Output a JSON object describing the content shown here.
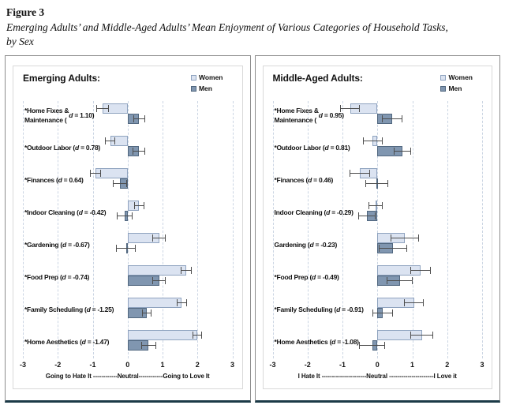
{
  "figure": {
    "label": "Figure 3",
    "title_line1": "Emerging Adults’ and Middle-Aged Adults’ Mean Enjoyment of Various Categories of Household Tasks,",
    "title_line2": "by Sex"
  },
  "legend": {
    "women": "Women",
    "men": "Men"
  },
  "colors": {
    "women_fill": "#dbe3f1",
    "women_border": "#8fa3bf",
    "men_fill": "#8096b0",
    "men_border": "#51677f",
    "error_bar": "#4d4d4d",
    "gridline": "#cbd5e3",
    "panel_bottom_border": "#1b3a47"
  },
  "chart_data": [
    {
      "type": "bar",
      "orientation": "horizontal",
      "id": "emerging-adults",
      "panel_title": "Emerging Adults:",
      "xlim": [
        -3,
        3
      ],
      "xticks": [
        -3,
        -2,
        -1,
        0,
        1,
        2,
        3
      ],
      "grid": "dashed-vertical",
      "legend_position": "top-right",
      "axis_caption": "Going to Hate It ------------Neutral------------Going to Love It",
      "series_names": [
        "Women",
        "Men"
      ],
      "categories": [
        {
          "label": "*Home Fixes &\nMaintenance (d = 1.10)",
          "d": "1.10",
          "women": -0.72,
          "women_err": 0.18,
          "men": 0.33,
          "men_err": 0.17
        },
        {
          "label": "*Outdoor Labor (d = 0.78)",
          "d": "0.78",
          "women": -0.5,
          "women_err": 0.14,
          "men": 0.33,
          "men_err": 0.18
        },
        {
          "label": "*Finances (d = 0.64)",
          "d": "0.64",
          "women": -0.92,
          "women_err": 0.16,
          "men": -0.22,
          "men_err": 0.2
        },
        {
          "label": "*Indoor Cleaning (d = -0.42)",
          "d": "-0.42",
          "women": 0.33,
          "women_err": 0.15,
          "men": -0.08,
          "men_err": 0.22
        },
        {
          "label": "*Gardening (d = -0.67)",
          "d": "-0.67",
          "women": 0.9,
          "women_err": 0.2,
          "men": -0.05,
          "men_err": 0.28
        },
        {
          "label": "*Food Prep (d = -0.74)",
          "d": "-0.74",
          "women": 1.68,
          "women_err": 0.16,
          "men": 0.9,
          "men_err": 0.19
        },
        {
          "label": "*Family Scheduling (d = -1.25)",
          "d": "-1.25",
          "women": 1.55,
          "women_err": 0.14,
          "men": 0.55,
          "men_err": 0.14
        },
        {
          "label": "*Home Aesthetics (d = -1.47)",
          "d": "-1.47",
          "women": 2.0,
          "women_err": 0.13,
          "men": 0.6,
          "men_err": 0.22
        }
      ]
    },
    {
      "type": "bar",
      "orientation": "horizontal",
      "id": "middle-aged-adults",
      "panel_title": "Middle-Aged Adults:",
      "xlim": [
        -3,
        3
      ],
      "xticks": [
        -3,
        -2,
        -1,
        0,
        1,
        2,
        3
      ],
      "grid": "dashed-vertical",
      "legend_position": "top-right",
      "axis_caption": "I Hate It ----------------------Neutral ----------------------I Love it",
      "series_names": [
        "Women",
        "Men"
      ],
      "categories": [
        {
          "label": "*Home Fixes &\nMaintenance (d = 0.95)",
          "d": "0.95",
          "women": -0.78,
          "women_err": 0.28,
          "men": 0.42,
          "men_err": 0.3
        },
        {
          "label": "*Outdoor Labor (d = 0.81)",
          "d": "0.81",
          "women": -0.13,
          "women_err": 0.28,
          "men": 0.72,
          "men_err": 0.24
        },
        {
          "label": "*Finances (d = 0.46)",
          "d": "0.46",
          "women": -0.5,
          "women_err": 0.3,
          "men": -0.02,
          "men_err": 0.32
        },
        {
          "label": "Indoor Cleaning (d = -0.29)",
          "d": "-0.29",
          "women": -0.05,
          "women_err": 0.2,
          "men": -0.3,
          "men_err": 0.25
        },
        {
          "label": "Gardening (d = -0.23)",
          "d": "-0.23",
          "women": 0.79,
          "women_err": 0.41,
          "men": 0.45,
          "men_err": 0.41
        },
        {
          "label": "*Food Prep (d = -0.49)",
          "d": "-0.49",
          "women": 1.24,
          "women_err": 0.3,
          "men": 0.64,
          "men_err": 0.38
        },
        {
          "label": "*Family Scheduling (d = -0.91)",
          "d": "-0.91",
          "women": 1.05,
          "women_err": 0.28,
          "men": 0.15,
          "men_err": 0.3
        },
        {
          "label": "*Home Aesthetics (d = -1.08)",
          "d": "-1.08",
          "women": 1.28,
          "women_err": 0.33,
          "men": -0.15,
          "men_err": 0.38
        }
      ]
    }
  ]
}
